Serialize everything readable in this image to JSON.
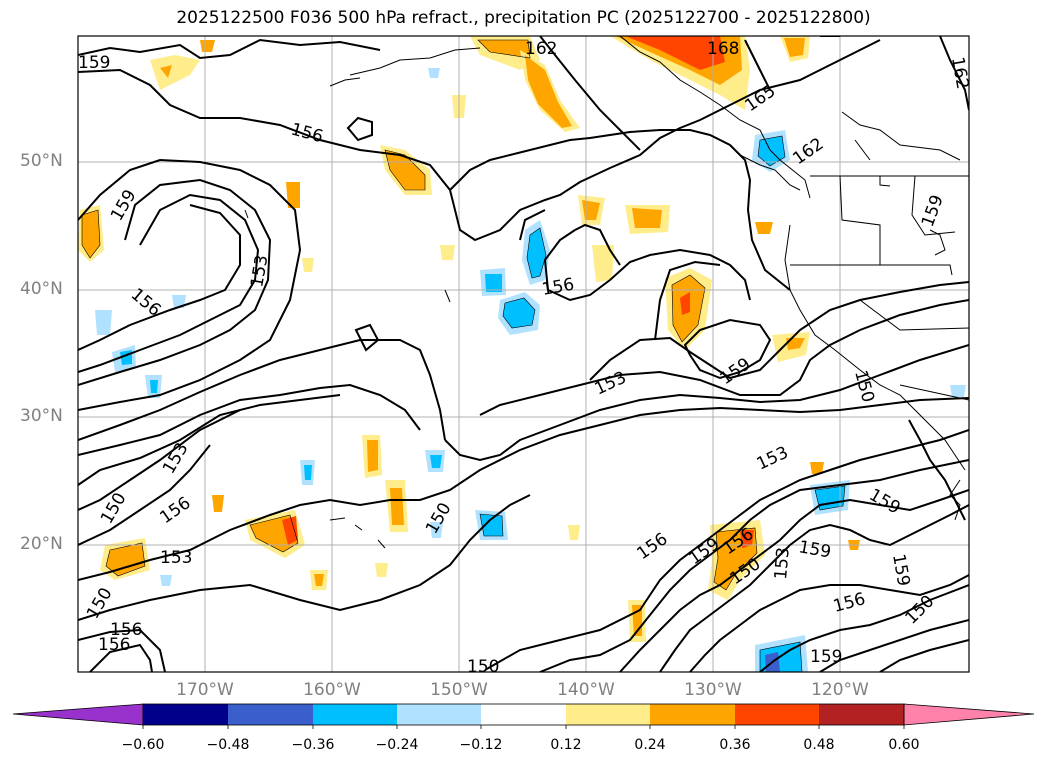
{
  "title": "2025122500 F036 500 hPa refract., precipitation PC (2025122700 - 2025122800)",
  "lat_labels": [
    "50°N",
    "40°N",
    "30°N",
    "20°N"
  ],
  "lon_labels": [
    "170°W",
    "160°W",
    "150°W",
    "140°W",
    "130°W",
    "120°W"
  ],
  "colorbar": {
    "ticks": [
      "−0.60",
      "−0.48",
      "−0.36",
      "−0.24",
      "−0.12",
      "0.12",
      "0.24",
      "0.36",
      "0.48",
      "0.60"
    ],
    "colors": [
      "#9932cc",
      "#00008b",
      "#3a5fcd",
      "#00bfff",
      "#b0e2ff",
      "#ffffff",
      "#ffec8b",
      "#ffa500",
      "#ff4500",
      "#b22222",
      "#ff82ab"
    ]
  },
  "contour_labels": [
    "159",
    "162",
    "168",
    "162",
    "165",
    "162",
    "156",
    "159",
    "153",
    "156",
    "159",
    "156",
    "153",
    "159",
    "150",
    "153",
    "156",
    "150",
    "153",
    "156",
    "150",
    "156",
    "159",
    "156",
    "159",
    "150",
    "153",
    "159",
    "153",
    "159",
    "156",
    "150",
    "159",
    "150"
  ]
}
